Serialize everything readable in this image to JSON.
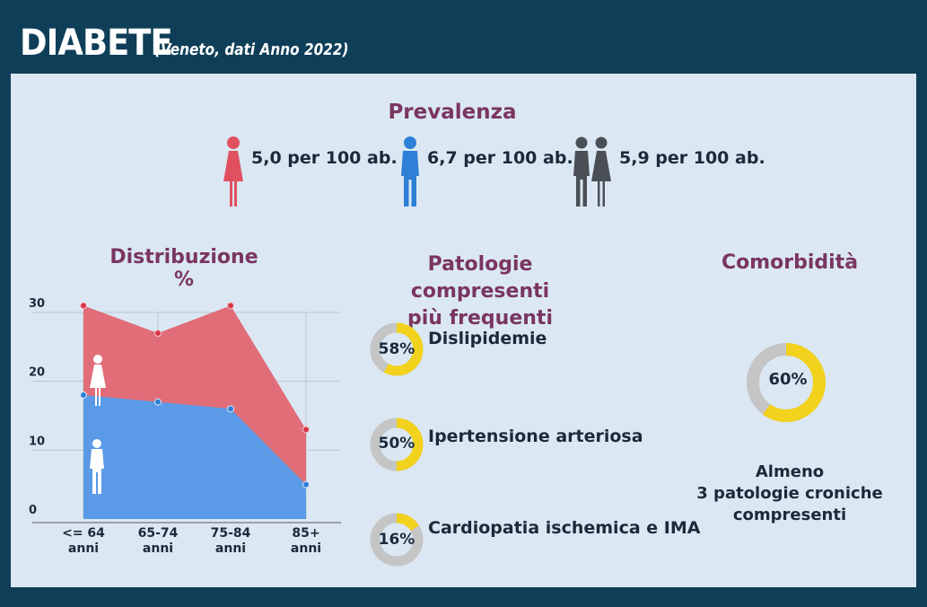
{
  "header": {
    "title": "DIABETE",
    "subtitle": "(Veneto, dati Anno 2022)"
  },
  "prevalence": {
    "title": "Prevalenza",
    "items": [
      {
        "icon": "female-icon",
        "color": "#e0505f",
        "label": "5,0 per 100 ab."
      },
      {
        "icon": "male-icon",
        "color": "#2e7fd6",
        "label": "6,7 per 100 ab."
      },
      {
        "icon": "couple-icon",
        "color": "#4a4f56",
        "label": "5,9 per 100 ab."
      }
    ]
  },
  "distribution": {
    "title": "Distribuzione %",
    "y_ticks": [
      "30",
      "20",
      "10",
      "0"
    ],
    "x_labels": [
      [
        "<= 64",
        "anni"
      ],
      [
        "65-74",
        "anni"
      ],
      [
        "75-84",
        "anni"
      ],
      [
        "85+",
        "anni"
      ]
    ]
  },
  "chart_data": {
    "type": "area",
    "title": "Distribuzione %",
    "categories": [
      "<= 64 anni",
      "65-74 anni",
      "75-84 anni",
      "85+ anni"
    ],
    "ylim": [
      0,
      30
    ],
    "grid": true,
    "series": [
      {
        "icon": "male-icon",
        "color": "#5a9ae6",
        "values": [
          18,
          17,
          16,
          5
        ]
      },
      {
        "icon": "female-icon",
        "color": "#e06d78",
        "values": [
          31,
          27,
          31,
          13
        ]
      }
    ]
  },
  "comorbidities": {
    "title_line1": "Patologie compresenti",
    "title_line2": "più frequenti",
    "items": [
      {
        "percent": 58,
        "label": "58%",
        "name": "Dislipidemie"
      },
      {
        "percent": 50,
        "label": "50%",
        "name": "Ipertensione arteriosa"
      },
      {
        "percent": 16,
        "label": "16%",
        "name": "Cardiopatia ischemica e IMA"
      }
    ]
  },
  "comorbidity": {
    "title": "Comorbidità",
    "percent": 60,
    "label": "60%",
    "desc_line1": "Almeno",
    "desc_line2": "3 patologie croniche",
    "desc_line3": "compresenti"
  },
  "colors": {
    "donut_fill": "#f2d21c",
    "donut_track": "#c5c5c5",
    "title_color": "#7a3560",
    "header_bg": "#0f3e58",
    "panel_bg": "#dbe8f3"
  }
}
